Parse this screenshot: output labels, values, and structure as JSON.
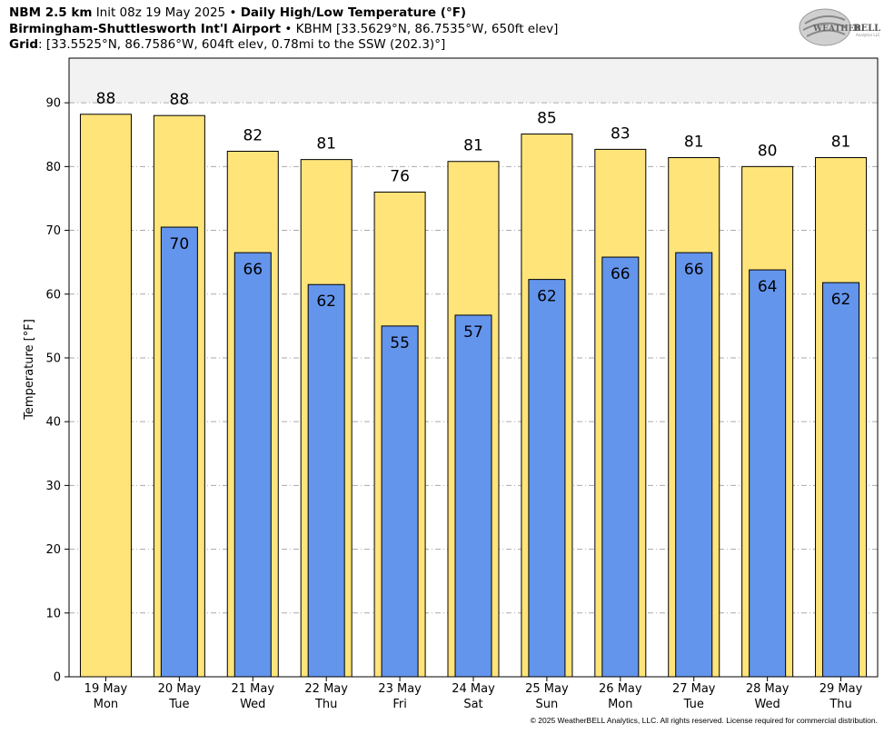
{
  "header": {
    "line1": {
      "model": "NBM 2.5 km",
      "init": "Init 08z 19 May 2025",
      "sep": "•",
      "product": "Daily High/Low Temperature (°F)"
    },
    "line2": {
      "station": "Birmingham-Shuttlesworth Int'l Airport",
      "sep": "•",
      "details": "KBHM [33.5629°N, 86.7535°W, 650ft elev]"
    },
    "line3": {
      "label": "Grid",
      "details": ": [33.5525°N, 86.7586°W, 604ft elev, 0.78mi to the SSW (202.3)°]"
    }
  },
  "logo": {
    "text_a": "WEATHER",
    "text_b": "BELL",
    "subtext": "Analytics LLC"
  },
  "copyright": "© 2025 WeatherBELL Analytics, LLC. All rights reserved. License required for commercial distribution.",
  "colors": {
    "high_bar": "#ffe47a",
    "low_bar": "#6495ed",
    "plot_bg_upper": "#f2f2f2",
    "grid": "#aaaaaa"
  },
  "chart_data": {
    "type": "bar",
    "ylabel": "Temperature [°F]",
    "ylim": [
      0,
      97
    ],
    "yticks": [
      0,
      10,
      20,
      30,
      40,
      50,
      60,
      70,
      80,
      90
    ],
    "grid": true,
    "categories": [
      {
        "date": "19 May",
        "day": "Mon"
      },
      {
        "date": "20 May",
        "day": "Tue"
      },
      {
        "date": "21 May",
        "day": "Wed"
      },
      {
        "date": "22 May",
        "day": "Thu"
      },
      {
        "date": "23 May",
        "day": "Fri"
      },
      {
        "date": "24 May",
        "day": "Sat"
      },
      {
        "date": "25 May",
        "day": "Sun"
      },
      {
        "date": "26 May",
        "day": "Mon"
      },
      {
        "date": "27 May",
        "day": "Tue"
      },
      {
        "date": "28 May",
        "day": "Wed"
      },
      {
        "date": "29 May",
        "day": "Thu"
      }
    ],
    "series": [
      {
        "key": "high",
        "values": [
          88.2,
          88.0,
          82.4,
          81.1,
          76.0,
          80.8,
          85.1,
          82.7,
          81.4,
          80.0,
          81.4
        ],
        "labels": [
          "88",
          "88",
          "82",
          "81",
          "76",
          "81",
          "85",
          "83",
          "81",
          "80",
          "81"
        ]
      },
      {
        "key": "low",
        "values": [
          null,
          70.5,
          66.5,
          61.5,
          55.0,
          56.7,
          62.3,
          65.8,
          66.5,
          63.8,
          61.8
        ],
        "labels": [
          null,
          "70",
          "66",
          "62",
          "55",
          "57",
          "62",
          "66",
          "66",
          "64",
          "62"
        ]
      }
    ]
  }
}
